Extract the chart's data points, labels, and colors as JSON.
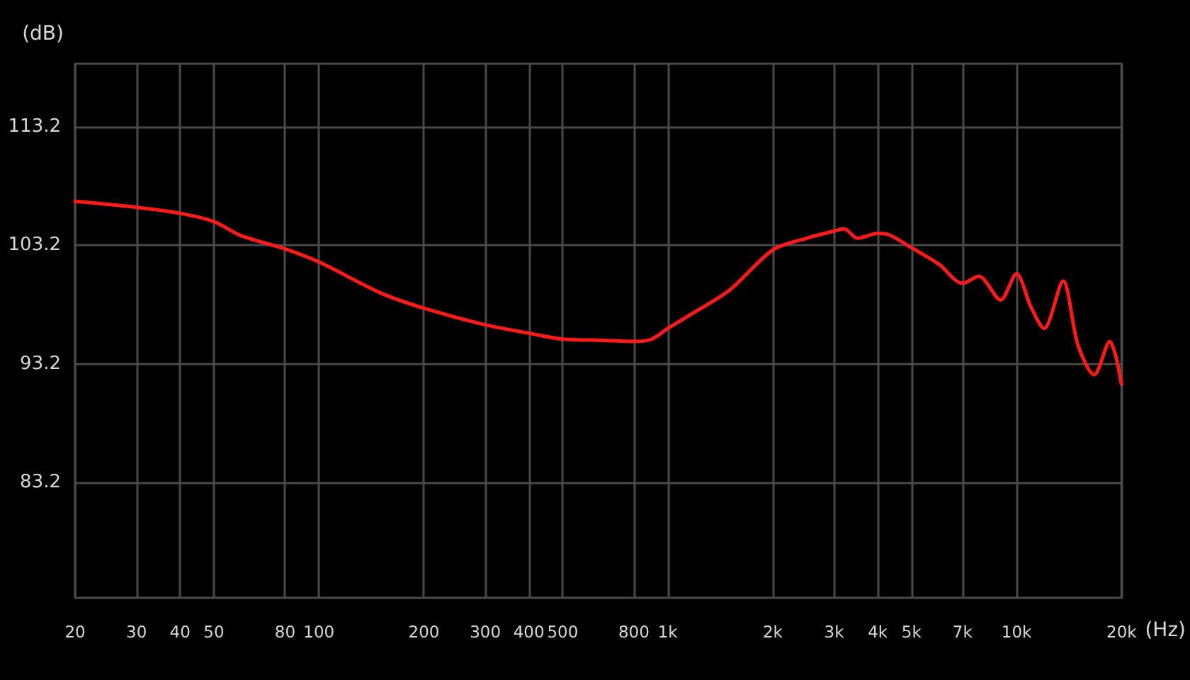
{
  "chart_data": {
    "type": "line",
    "xlabel": "(Hz)",
    "ylabel": "(dB)",
    "log": "x",
    "xlim": [
      20,
      20000
    ],
    "xticks": [
      20,
      30,
      40,
      50,
      80,
      100,
      200,
      300,
      {
        "value": 400,
        "label": "400"
      },
      500,
      800,
      {
        "value": 1000,
        "label": "1k"
      },
      {
        "value": 2000,
        "label": "2k"
      },
      {
        "value": 3000,
        "label": "3k"
      },
      {
        "value": 4000,
        "label": "4k"
      },
      {
        "value": 5000,
        "label": "5k"
      },
      {
        "value": 7000,
        "label": "7k"
      },
      {
        "value": 10000,
        "label": "10k"
      },
      {
        "value": 20000,
        "label": "20k"
      }
    ],
    "ylim": [
      73.5,
      118.5
    ],
    "yticks": [
      83.2,
      93.2,
      103.2,
      113.2
    ],
    "grid": true,
    "marker": "none",
    "line_style": "solid",
    "x": [
      20,
      30,
      40,
      50,
      60,
      80,
      100,
      150,
      200,
      300,
      400,
      500,
      650,
      800,
      900,
      1000,
      1200,
      1500,
      2000,
      2500,
      3000,
      3200,
      3500,
      4000,
      4300,
      5000,
      6000,
      7000,
      7800,
      9000,
      10000,
      11000,
      12000,
      13600,
      15000,
      16700,
      18500,
      20000
    ],
    "series": [
      {
        "color": "#ff1a1a",
        "values": [
          106.9,
          106.4,
          105.9,
          105.2,
          104.0,
          102.9,
          101.8,
          99.2,
          97.9,
          96.5,
          95.8,
          95.3,
          95.2,
          95.1,
          95.3,
          96.2,
          97.6,
          99.4,
          102.8,
          103.8,
          104.4,
          104.6,
          103.8,
          104.2,
          104.1,
          103.0,
          101.6,
          100.0,
          100.6,
          98.6,
          100.8,
          98.0,
          96.2,
          100.2,
          94.8,
          92.3,
          95.1,
          91.5
        ]
      }
    ]
  }
}
